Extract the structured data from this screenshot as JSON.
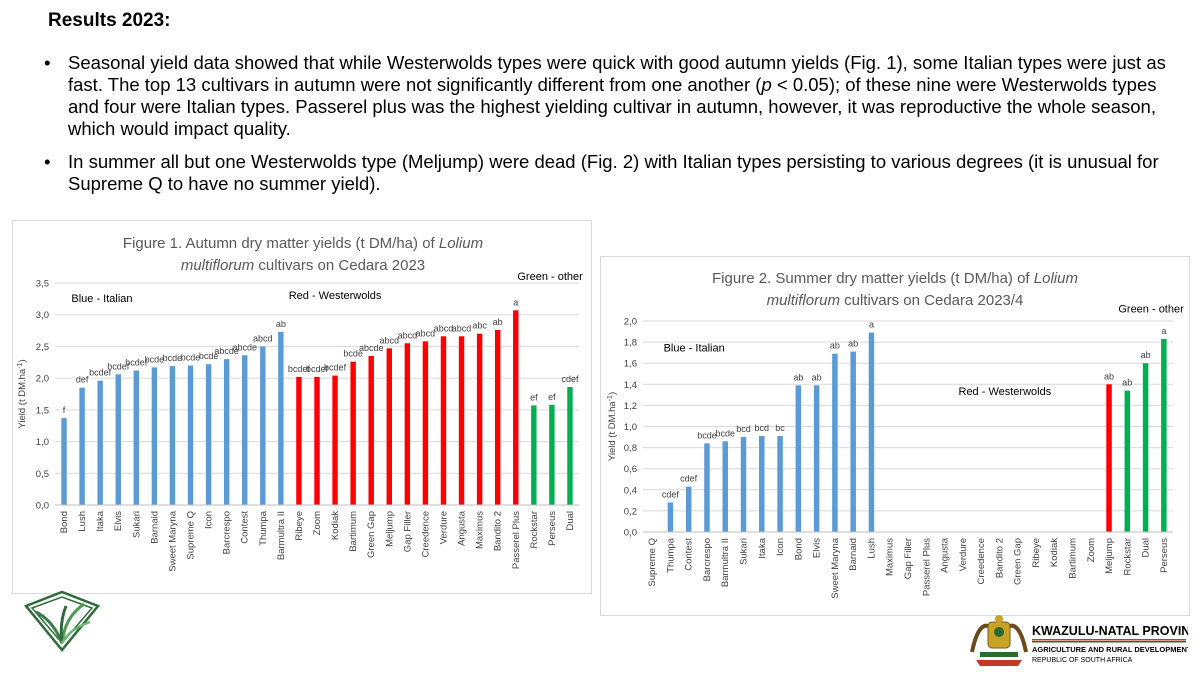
{
  "heading": "Results 2023:",
  "bullets": [
    {
      "before": "Seasonal yield data showed that while Westerwolds types were quick with good autumn yields (Fig. 1), some Italian types were just as fast. The top 13 cultivars in autumn were not significantly different from one another (",
      "italic": "p",
      "after": " < 0.05); of these nine were Westerwolds types and four were Italian types. Passerel plus was the highest yielding cultivar in autumn, however, it was reproductive the whole season, which would impact quality."
    },
    {
      "before": "In summer all but one Westerwolds type (Meljump) were dead (Fig. 2) with Italian types persisting to various degrees (it is unusual for Supreme Q to have no summer yield).",
      "italic": "",
      "after": ""
    }
  ],
  "colors": {
    "blue": "#5b9bd5",
    "red": "#ff0000",
    "green": "#00b050",
    "grid": "#d9d9d9",
    "axis_text": "#404040"
  },
  "chart_data": [
    {
      "type": "bar",
      "title_parts": [
        "Figure 1. Autumn dry matter yields (t DM/ha) of ",
        "Lolium multiflorum",
        " cultivars on Cedara 2023"
      ],
      "ylabel": "Yield (t DM.ha",
      "ylabel_sup": "-1",
      "ylabel_end": ")",
      "ylim": [
        0,
        3.5
      ],
      "yticks": [
        "0,0",
        "0,5",
        "1,0",
        "1,5",
        "2,0",
        "2,5",
        "3,0",
        "3,5"
      ],
      "group_labels": [
        {
          "text": "Blue - Italian",
          "x_index": 2.6,
          "y": 3.2
        },
        {
          "text": "Red - Westerwolds",
          "x_index": 15.5,
          "y": 3.25
        },
        {
          "text": "Green - other",
          "x_index": 27.4,
          "y": 3.55
        }
      ],
      "bars": [
        {
          "name": "Bond",
          "value": 1.37,
          "group": "blue",
          "label": "f"
        },
        {
          "name": "Lush",
          "value": 1.85,
          "group": "blue",
          "label": "def"
        },
        {
          "name": "Itaka",
          "value": 1.96,
          "group": "blue",
          "label": "bcdef"
        },
        {
          "name": "Elvis",
          "value": 2.06,
          "group": "blue",
          "label": "bcdef"
        },
        {
          "name": "Sukari",
          "value": 2.12,
          "group": "blue",
          "label": "bcdef"
        },
        {
          "name": "Barnaid",
          "value": 2.17,
          "group": "blue",
          "label": "bcde"
        },
        {
          "name": "Sweet Maryna",
          "value": 2.19,
          "group": "blue",
          "label": "bcde"
        },
        {
          "name": "Supreme Q",
          "value": 2.2,
          "group": "blue",
          "label": "bcde"
        },
        {
          "name": "Icon",
          "value": 2.22,
          "group": "blue",
          "label": "bcde"
        },
        {
          "name": "Barcrespo",
          "value": 2.3,
          "group": "blue",
          "label": "abcde"
        },
        {
          "name": "Contest",
          "value": 2.36,
          "group": "blue",
          "label": "abcde"
        },
        {
          "name": "Thumpa",
          "value": 2.5,
          "group": "blue",
          "label": "abcd"
        },
        {
          "name": "Barmultra II",
          "value": 2.73,
          "group": "blue",
          "label": "ab"
        },
        {
          "name": "Ribeye",
          "value": 2.02,
          "group": "red",
          "label": "bcdef"
        },
        {
          "name": "Zoom",
          "value": 2.02,
          "group": "red",
          "label": "bcdef"
        },
        {
          "name": "Kodiak",
          "value": 2.04,
          "group": "red",
          "label": "bcdef"
        },
        {
          "name": "Bartimum",
          "value": 2.26,
          "group": "red",
          "label": "bcde"
        },
        {
          "name": "Green Gap",
          "value": 2.35,
          "group": "red",
          "label": "abcde"
        },
        {
          "name": "Meljump",
          "value": 2.47,
          "group": "red",
          "label": "abcd"
        },
        {
          "name": "Gap Filler",
          "value": 2.55,
          "group": "red",
          "label": "abcd"
        },
        {
          "name": "Creedence",
          "value": 2.58,
          "group": "red",
          "label": "abcd"
        },
        {
          "name": "Verdure",
          "value": 2.66,
          "group": "red",
          "label": "abcd"
        },
        {
          "name": "Angusta",
          "value": 2.66,
          "group": "red",
          "label": "abcd"
        },
        {
          "name": "Maximus",
          "value": 2.7,
          "group": "red",
          "label": "abc"
        },
        {
          "name": "Bandito 2",
          "value": 2.76,
          "group": "red",
          "label": "ab"
        },
        {
          "name": "Passerel Plus",
          "value": 3.07,
          "group": "red",
          "label": "a"
        },
        {
          "name": "Rockstar",
          "value": 1.57,
          "group": "green",
          "label": "ef"
        },
        {
          "name": "Perseus",
          "value": 1.58,
          "group": "green",
          "label": "ef"
        },
        {
          "name": "Dual",
          "value": 1.86,
          "group": "green",
          "label": "cdef"
        }
      ]
    },
    {
      "type": "bar",
      "title_parts": [
        "Figure 2. Summer dry matter yields (t DM/ha) of ",
        "Lolium multiflorum",
        " cultivars on Cedara 2023/4"
      ],
      "ylabel": "Yield (t DM.ha",
      "ylabel_sup": "-1",
      "ylabel_end": ")",
      "ylim": [
        0,
        2.0
      ],
      "yticks": [
        "0,0",
        "0,2",
        "0,4",
        "0,6",
        "0,8",
        "1,0",
        "1,2",
        "1,4",
        "1,6",
        "1,8",
        "2,0"
      ],
      "group_labels": [
        {
          "text": "Blue - Italian",
          "x_index": 2.8,
          "y": 1.71
        },
        {
          "text": "Red - Westerwolds",
          "x_index": 19.8,
          "y": 1.3
        },
        {
          "text": "Green - other",
          "x_index": 27.8,
          "y": 2.08
        }
      ],
      "bars": [
        {
          "name": "Supreme Q",
          "value": 0,
          "group": "blue",
          "label": ""
        },
        {
          "name": "Thumpa",
          "value": 0.28,
          "group": "blue",
          "label": "cdef"
        },
        {
          "name": "Contest",
          "value": 0.43,
          "group": "blue",
          "label": "cdef"
        },
        {
          "name": "Barcrespo",
          "value": 0.84,
          "group": "blue",
          "label": "bcde"
        },
        {
          "name": "Barmultra II",
          "value": 0.86,
          "group": "blue",
          "label": "bcde"
        },
        {
          "name": "Sukari",
          "value": 0.9,
          "group": "blue",
          "label": "bcd"
        },
        {
          "name": "Itaka",
          "value": 0.91,
          "group": "blue",
          "label": "bcd"
        },
        {
          "name": "Icon",
          "value": 0.91,
          "group": "blue",
          "label": "bc"
        },
        {
          "name": "Bond",
          "value": 1.39,
          "group": "blue",
          "label": "ab"
        },
        {
          "name": "Elvis",
          "value": 1.39,
          "group": "blue",
          "label": "ab"
        },
        {
          "name": "Sweet Maryna",
          "value": 1.69,
          "group": "blue",
          "label": "ab"
        },
        {
          "name": "Barnaid",
          "value": 1.71,
          "group": "blue",
          "label": "ab"
        },
        {
          "name": "Lush",
          "value": 1.89,
          "group": "blue",
          "label": "a"
        },
        {
          "name": "Maximus",
          "value": 0,
          "group": "red",
          "label": ""
        },
        {
          "name": "Gap Filler",
          "value": 0,
          "group": "red",
          "label": ""
        },
        {
          "name": "Passerel Plus",
          "value": 0,
          "group": "red",
          "label": ""
        },
        {
          "name": "Angusta",
          "value": 0,
          "group": "red",
          "label": ""
        },
        {
          "name": "Verdure",
          "value": 0,
          "group": "red",
          "label": ""
        },
        {
          "name": "Creedence",
          "value": 0,
          "group": "red",
          "label": ""
        },
        {
          "name": "Bandito 2",
          "value": 0,
          "group": "red",
          "label": ""
        },
        {
          "name": "Green Gap",
          "value": 0,
          "group": "red",
          "label": ""
        },
        {
          "name": "Ribeye",
          "value": 0,
          "group": "red",
          "label": ""
        },
        {
          "name": "Kodiak",
          "value": 0,
          "group": "red",
          "label": ""
        },
        {
          "name": "Bartimum",
          "value": 0,
          "group": "red",
          "label": ""
        },
        {
          "name": "Zoom",
          "value": 0,
          "group": "red",
          "label": ""
        },
        {
          "name": "Meljump",
          "value": 1.4,
          "group": "red",
          "label": "ab"
        },
        {
          "name": "Rockstar",
          "value": 1.34,
          "group": "green",
          "label": "ab"
        },
        {
          "name": "Dual",
          "value": 1.6,
          "group": "green",
          "label": "ab"
        },
        {
          "name": "Perseus",
          "value": 1.83,
          "group": "green",
          "label": "a"
        }
      ]
    }
  ],
  "logo_right": {
    "line1": "KWAZULU-NATAL PROVINCE",
    "line2": "AGRICULTURE AND RURAL DEVELOPMENT",
    "line3": "REPUBLIC OF SOUTH AFRICA"
  }
}
